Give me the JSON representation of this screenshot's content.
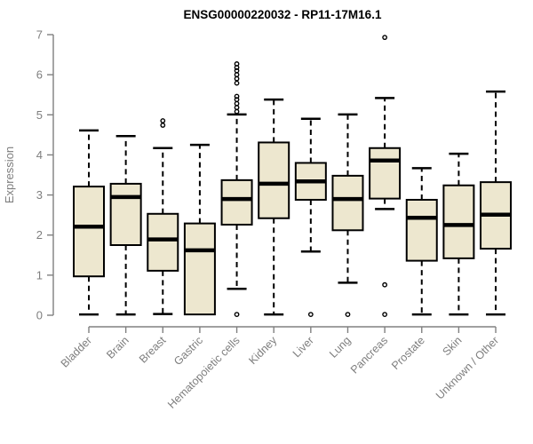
{
  "chart_data": {
    "type": "boxplot",
    "title": "ENSG00000220032 - RP11-17M16.1",
    "ylabel": "Expression",
    "ylim": [
      0,
      7
    ],
    "yticks": [
      0,
      1,
      2,
      3,
      4,
      5,
      6,
      7
    ],
    "grid": false,
    "categories": [
      "Bladder",
      "Brain",
      "Breast",
      "Gastric",
      "Hematopoietic cells",
      "Kidney",
      "Liver",
      "Lung",
      "Pancreas",
      "Prostate",
      "Skin",
      "Unknown / Other"
    ],
    "series": [
      {
        "name": "Bladder",
        "whisker_low": 0.02,
        "q1": 0.97,
        "median": 2.21,
        "q3": 3.21,
        "whisker_high": 4.61,
        "outliers": []
      },
      {
        "name": "Brain",
        "whisker_low": 0.02,
        "q1": 1.75,
        "median": 2.95,
        "q3": 3.28,
        "whisker_high": 4.47,
        "outliers": []
      },
      {
        "name": "Breast",
        "whisker_low": 0.03,
        "q1": 1.11,
        "median": 1.89,
        "q3": 2.53,
        "whisker_high": 4.17,
        "outliers": [
          4.74,
          4.85
        ]
      },
      {
        "name": "Gastric",
        "whisker_low": 0.02,
        "q1": 0.02,
        "median": 1.62,
        "q3": 2.29,
        "whisker_high": 4.25,
        "outliers": []
      },
      {
        "name": "Hematopoietic cells",
        "whisker_low": 0.66,
        "q1": 2.26,
        "median": 2.9,
        "q3": 3.37,
        "whisker_high": 5.01,
        "outliers": [
          0.02,
          5.08,
          5.18,
          5.28,
          5.38,
          5.46,
          5.79,
          5.9,
          6.0,
          6.1,
          6.18,
          6.27
        ]
      },
      {
        "name": "Kidney",
        "whisker_low": 0.02,
        "q1": 2.42,
        "median": 3.28,
        "q3": 4.31,
        "whisker_high": 5.38,
        "outliers": []
      },
      {
        "name": "Liver",
        "whisker_low": 1.59,
        "q1": 2.88,
        "median": 3.34,
        "q3": 3.8,
        "whisker_high": 4.9,
        "outliers": [
          0.02
        ]
      },
      {
        "name": "Lung",
        "whisker_low": 0.81,
        "q1": 2.12,
        "median": 2.9,
        "q3": 3.48,
        "whisker_high": 5.01,
        "outliers": [
          0.02
        ]
      },
      {
        "name": "Pancreas",
        "whisker_low": 2.65,
        "q1": 2.91,
        "median": 3.86,
        "q3": 4.17,
        "whisker_high": 5.42,
        "outliers": [
          0.02,
          0.76,
          6.93
        ]
      },
      {
        "name": "Prostate",
        "whisker_low": 0.02,
        "q1": 1.36,
        "median": 2.43,
        "q3": 2.88,
        "whisker_high": 3.67,
        "outliers": []
      },
      {
        "name": "Skin",
        "whisker_low": 0.02,
        "q1": 1.42,
        "median": 2.25,
        "q3": 3.24,
        "whisker_high": 4.03,
        "outliers": []
      },
      {
        "name": "Unknown / Other",
        "whisker_low": 0.02,
        "q1": 1.66,
        "median": 2.51,
        "q3": 3.32,
        "whisker_high": 5.58,
        "outliers": []
      }
    ],
    "colors": {
      "box_fill": "#EDE7CF",
      "box_border": "#000000",
      "median": "#000000",
      "whisker": "#000000",
      "axis": "#808080",
      "tick_text": "#7E7E7E",
      "title_text": "#000000"
    }
  }
}
